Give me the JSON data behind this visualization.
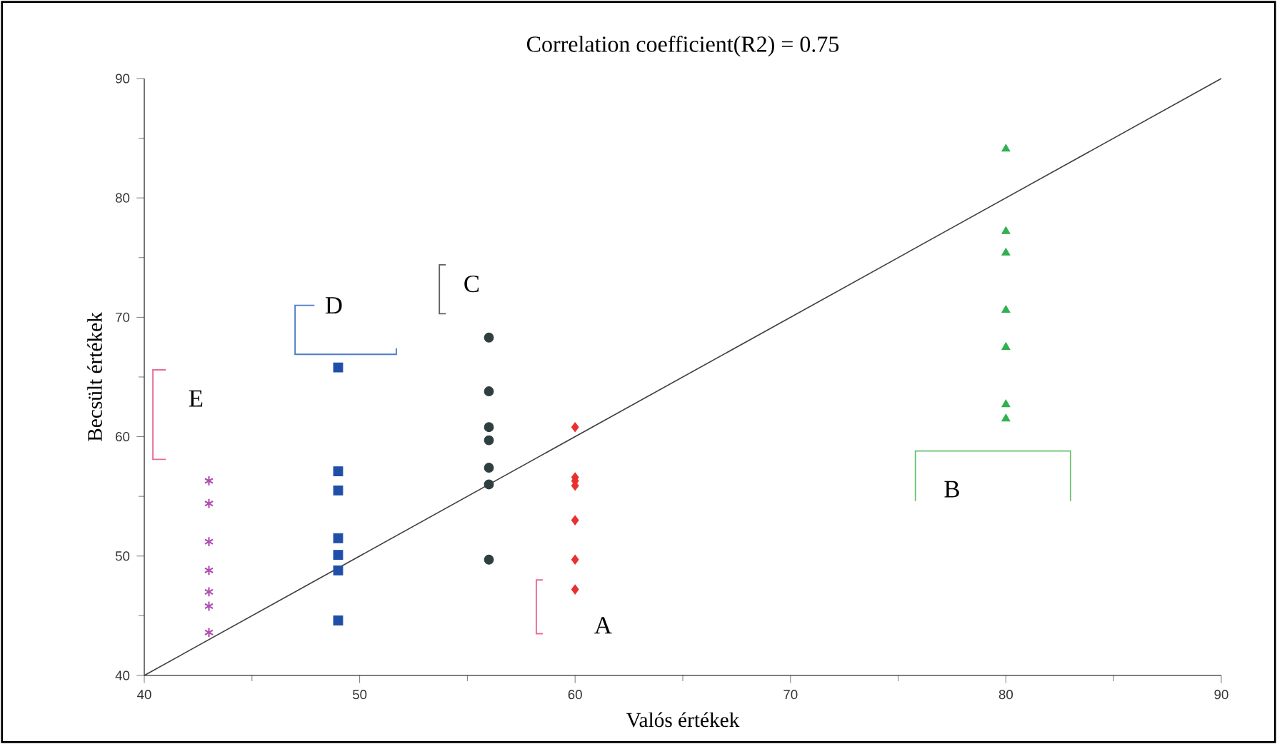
{
  "chart_data": {
    "type": "scatter",
    "title": "Correlation coefficient(R2) = 0.75",
    "xlabel": "Valós értékek",
    "ylabel": "Becsült értékek",
    "xlim": [
      40,
      90
    ],
    "ylim": [
      40,
      90
    ],
    "xticks": [
      40,
      50,
      60,
      70,
      80,
      90
    ],
    "yticks": [
      40,
      50,
      60,
      70,
      80,
      90
    ],
    "series": [
      {
        "type": "scatter",
        "marker": "cross",
        "color": "#b050b0",
        "x": [
          43,
          43,
          43,
          43,
          43,
          43,
          43
        ],
        "values": [
          56.3,
          54.4,
          51.2,
          48.8,
          47.0,
          45.8,
          43.6
        ]
      },
      {
        "type": "scatter",
        "marker": "square",
        "color": "#1f4fa8",
        "x": [
          49,
          49,
          49,
          49,
          49,
          49,
          49
        ],
        "values": [
          65.8,
          57.1,
          55.5,
          51.5,
          50.1,
          48.8,
          44.6
        ]
      },
      {
        "type": "scatter",
        "marker": "circle",
        "color": "#2f3f3f",
        "x": [
          56,
          56,
          56,
          56,
          56,
          56,
          56
        ],
        "values": [
          68.3,
          63.8,
          60.8,
          59.7,
          57.4,
          56.0,
          49.7
        ]
      },
      {
        "type": "scatter",
        "marker": "diamond",
        "color": "#e83030",
        "x": [
          60,
          60,
          60,
          60,
          60,
          60,
          60
        ],
        "values": [
          60.8,
          56.6,
          56.3,
          55.9,
          53.0,
          49.7,
          47.2
        ]
      },
      {
        "type": "scatter",
        "marker": "triangle",
        "color": "#30b050",
        "x": [
          80,
          80,
          80,
          80,
          80,
          80,
          80
        ],
        "values": [
          84.1,
          77.2,
          75.4,
          70.6,
          67.5,
          62.7,
          61.5
        ]
      },
      {
        "type": "line",
        "marker": "none",
        "color": "#404040",
        "x": [
          40,
          90
        ],
        "values": [
          40,
          90
        ]
      }
    ],
    "annotations": [
      "A",
      "B",
      "C",
      "D",
      "E"
    ]
  }
}
